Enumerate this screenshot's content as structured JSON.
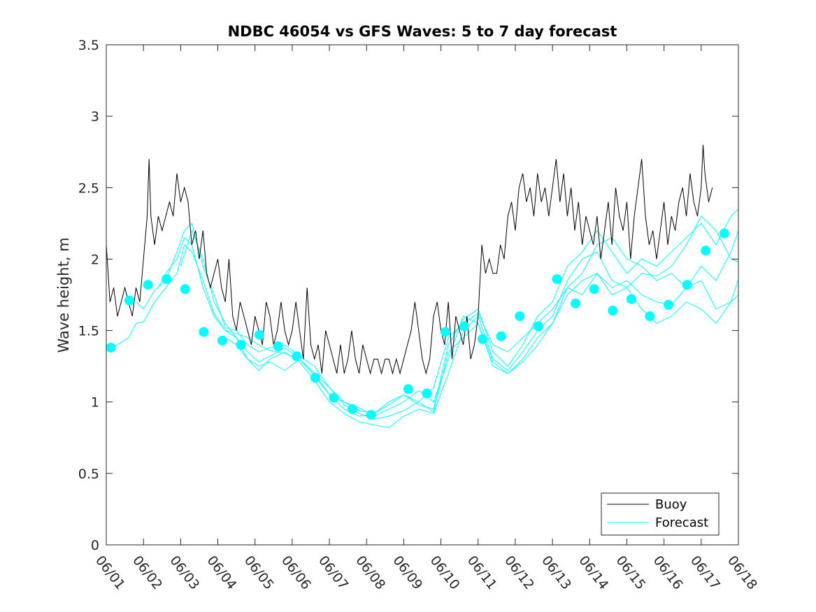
{
  "chart_data": {
    "type": "line",
    "title": "NDBC 46054 vs GFS Waves: 5 to 7 day forecast",
    "xlabel": "",
    "ylabel": "Wave height, m",
    "ylim": [
      0,
      3.5
    ],
    "yticks": [
      "0",
      "0.5",
      "1",
      "1.5",
      "2",
      "2.5",
      "3",
      "3.5"
    ],
    "xlim": [
      1,
      18
    ],
    "xticks": [
      "06/01",
      "06/02",
      "06/03",
      "06/04",
      "06/05",
      "06/06",
      "06/07",
      "06/08",
      "06/09",
      "06/10",
      "06/11",
      "06/12",
      "06/13",
      "06/14",
      "06/15",
      "06/16",
      "06/17",
      "06/18"
    ],
    "grid": false,
    "legend_position": "bottom-right",
    "colors": {
      "buoy": "#000000",
      "forecast": "#00ffff"
    },
    "series": [
      {
        "name": "Buoy",
        "style": "line",
        "x": [
          1.0,
          1.1,
          1.2,
          1.3,
          1.4,
          1.5,
          1.6,
          1.7,
          1.8,
          1.9,
          2.0,
          2.1,
          2.15,
          2.2,
          2.3,
          2.4,
          2.5,
          2.6,
          2.7,
          2.8,
          2.9,
          3.0,
          3.1,
          3.2,
          3.3,
          3.4,
          3.5,
          3.6,
          3.7,
          3.8,
          3.9,
          4.0,
          4.1,
          4.2,
          4.3,
          4.4,
          4.5,
          4.6,
          4.7,
          4.8,
          4.9,
          5.0,
          5.1,
          5.2,
          5.3,
          5.4,
          5.5,
          5.6,
          5.7,
          5.8,
          5.9,
          6.0,
          6.1,
          6.2,
          6.3,
          6.4,
          6.5,
          6.6,
          6.7,
          6.8,
          6.9,
          7.0,
          7.1,
          7.2,
          7.3,
          7.4,
          7.5,
          7.6,
          7.7,
          7.8,
          7.9,
          8.0,
          8.1,
          8.2,
          8.3,
          8.4,
          8.5,
          8.6,
          8.7,
          8.8,
          8.9,
          9.0,
          9.1,
          9.2,
          9.3,
          9.4,
          9.5,
          9.6,
          9.7,
          9.8,
          9.9,
          10.0,
          10.1,
          10.2,
          10.3,
          10.4,
          10.5,
          10.6,
          10.7,
          10.8,
          10.9,
          11.0,
          11.1,
          11.2,
          11.3,
          11.4,
          11.5,
          11.6,
          11.7,
          11.8,
          11.9,
          12.0,
          12.1,
          12.2,
          12.3,
          12.4,
          12.5,
          12.6,
          12.7,
          12.8,
          12.9,
          13.0,
          13.1,
          13.2,
          13.3,
          13.4,
          13.5,
          13.6,
          13.7,
          13.8,
          13.9,
          14.0,
          14.1,
          14.2,
          14.3,
          14.4,
          14.5,
          14.6,
          14.7,
          14.8,
          14.9,
          15.0,
          15.1,
          15.2,
          15.3,
          15.4,
          15.5,
          15.6,
          15.7,
          15.8,
          15.9,
          16.0,
          16.1,
          16.2,
          16.3,
          16.4,
          16.5,
          16.6,
          16.7,
          16.8,
          16.9,
          17.0,
          17.05,
          17.1,
          17.2,
          17.3
        ],
        "y": [
          2.1,
          1.7,
          1.8,
          1.6,
          1.7,
          1.8,
          1.7,
          1.6,
          1.8,
          1.7,
          2.0,
          2.3,
          2.7,
          2.3,
          2.1,
          2.3,
          2.2,
          2.3,
          2.4,
          2.3,
          2.6,
          2.4,
          2.5,
          2.4,
          2.1,
          2.2,
          2.0,
          2.2,
          1.9,
          1.8,
          1.9,
          2.0,
          1.8,
          1.7,
          2.0,
          1.6,
          1.5,
          1.7,
          1.6,
          1.5,
          1.4,
          1.6,
          1.5,
          1.4,
          1.7,
          1.6,
          1.4,
          1.5,
          1.7,
          1.5,
          1.4,
          1.5,
          1.7,
          1.5,
          1.3,
          1.8,
          1.4,
          1.3,
          1.4,
          1.2,
          1.5,
          1.4,
          1.3,
          1.2,
          1.4,
          1.2,
          1.3,
          1.5,
          1.3,
          1.2,
          1.4,
          1.3,
          1.2,
          1.3,
          1.3,
          1.2,
          1.3,
          1.3,
          1.2,
          1.3,
          1.2,
          1.3,
          1.4,
          1.5,
          1.7,
          1.5,
          1.3,
          1.2,
          1.3,
          1.6,
          1.7,
          1.5,
          1.4,
          1.7,
          1.3,
          1.6,
          1.5,
          1.4,
          1.6,
          1.3,
          1.4,
          1.6,
          2.1,
          1.9,
          2.0,
          1.9,
          1.9,
          2.1,
          2.0,
          2.3,
          2.4,
          2.2,
          2.5,
          2.6,
          2.4,
          2.5,
          2.3,
          2.6,
          2.4,
          2.5,
          2.3,
          2.5,
          2.7,
          2.4,
          2.6,
          2.3,
          2.5,
          2.2,
          2.4,
          2.1,
          2.3,
          2.2,
          2.1,
          2.3,
          2.0,
          2.2,
          2.4,
          2.1,
          2.5,
          2.3,
          2.2,
          2.4,
          2.0,
          2.3,
          2.5,
          2.7,
          2.3,
          2.1,
          2.2,
          2.0,
          2.2,
          2.4,
          2.1,
          2.3,
          2.2,
          2.4,
          2.5,
          2.3,
          2.6,
          2.4,
          2.3,
          2.5,
          2.8,
          2.6,
          2.4,
          2.5
        ]
      },
      {
        "name": "Forecast",
        "style": "line",
        "runs": [
          {
            "x": [
              1.0,
              1.3,
              1.6,
              1.8,
              2.0,
              2.3,
              2.6,
              2.9,
              3.1,
              3.3,
              3.6,
              3.9,
              4.2,
              4.5,
              4.8,
              5.1,
              5.4,
              5.8,
              6.2,
              6.6,
              7.0,
              7.4,
              7.8,
              8.2,
              8.6,
              9.0,
              9.4,
              9.8,
              10.2,
              10.6,
              11.0,
              11.4,
              11.8,
              12.2,
              12.6,
              13.0,
              13.4,
              13.8,
              14.2,
              14.6,
              15.0,
              15.4,
              15.8,
              16.2,
              16.6,
              17.0,
              17.4,
              17.8,
              18.0
            ],
            "y": [
              1.38,
              1.4,
              1.45,
              1.55,
              1.56,
              1.7,
              1.8,
              1.9,
              2.1,
              2.05,
              1.85,
              1.62,
              1.5,
              1.48,
              1.45,
              1.4,
              1.36,
              1.34,
              1.3,
              1.2,
              1.05,
              1.0,
              0.94,
              0.92,
              0.98,
              1.05,
              1.0,
              1.1,
              1.45,
              1.55,
              1.62,
              1.4,
              1.35,
              1.45,
              1.55,
              1.65,
              1.8,
              1.75,
              1.9,
              1.8,
              1.85,
              1.75,
              1.7,
              1.68,
              1.8,
              1.85,
              1.65,
              1.7,
              1.86
            ]
          },
          {
            "x": [
              1.8,
              2.0,
              2.3,
              2.6,
              2.9,
              3.1,
              3.3,
              3.6,
              3.9,
              4.2,
              4.5,
              4.8,
              5.1,
              5.4,
              5.8,
              6.2,
              6.6,
              7.0,
              7.4,
              7.8,
              8.2,
              8.6,
              9.0,
              9.4,
              9.8,
              10.2,
              10.6,
              11.0,
              11.4,
              11.8,
              12.2,
              12.6,
              13.0,
              13.4,
              13.8,
              14.2,
              14.6,
              15.0,
              15.4,
              15.8,
              16.2,
              16.6,
              17.0,
              17.4,
              17.8,
              18.0
            ],
            "y": [
              1.7,
              1.65,
              1.78,
              1.85,
              2.05,
              2.2,
              2.25,
              1.95,
              1.75,
              1.52,
              1.5,
              1.4,
              1.35,
              1.38,
              1.4,
              1.32,
              1.25,
              1.1,
              1.0,
              0.96,
              0.9,
              0.95,
              1.0,
              1.08,
              1.0,
              1.3,
              1.6,
              1.55,
              1.28,
              1.2,
              1.3,
              1.45,
              1.55,
              1.8,
              1.9,
              2.1,
              2.15,
              2.0,
              1.95,
              1.85,
              1.9,
              1.8,
              1.95,
              1.85,
              2.05,
              2.2
            ]
          },
          {
            "x": [
              2.4,
              2.6,
              2.9,
              3.1,
              3.3,
              3.6,
              3.9,
              4.2,
              4.5,
              4.8,
              5.1,
              5.4,
              5.8,
              6.2,
              6.6,
              7.0,
              7.4,
              7.8,
              8.2,
              8.6,
              9.0,
              9.4,
              9.8,
              10.2,
              10.6,
              11.0,
              11.4,
              11.8,
              12.2,
              12.6,
              13.0,
              13.4,
              13.8,
              14.2,
              14.6,
              15.0,
              15.4,
              15.8,
              16.2,
              16.6,
              17.0,
              17.4,
              17.8,
              18.0
            ],
            "y": [
              1.8,
              1.9,
              2.0,
              2.15,
              2.1,
              1.8,
              1.6,
              1.5,
              1.45,
              1.35,
              1.28,
              1.32,
              1.38,
              1.3,
              1.18,
              1.05,
              0.95,
              0.9,
              0.92,
              1.0,
              1.05,
              0.98,
              0.95,
              1.4,
              1.58,
              1.65,
              1.35,
              1.25,
              1.4,
              1.6,
              1.7,
              1.95,
              2.05,
              2.2,
              2.05,
              1.9,
              2.0,
              1.95,
              2.05,
              2.15,
              2.25,
              2.1,
              2.3,
              2.35
            ]
          },
          {
            "x": [
              3.0,
              3.3,
              3.6,
              3.9,
              4.2,
              4.5,
              4.8,
              5.1,
              5.4,
              5.8,
              6.2,
              6.6,
              7.0,
              7.4,
              7.8,
              8.2,
              8.6,
              9.0,
              9.4,
              9.8,
              10.2,
              10.6,
              11.0,
              11.4,
              11.8,
              12.2,
              12.6,
              13.0,
              13.4,
              13.8,
              14.2,
              14.6,
              15.0,
              15.4,
              15.8,
              16.2,
              16.6,
              17.0,
              17.4,
              17.8,
              18.0
            ],
            "y": [
              1.95,
              2.2,
              2.0,
              1.7,
              1.55,
              1.45,
              1.3,
              1.22,
              1.3,
              1.35,
              1.28,
              1.15,
              1.0,
              0.92,
              0.86,
              0.84,
              0.82,
              0.9,
              0.95,
              0.92,
              1.2,
              1.5,
              1.6,
              1.3,
              1.22,
              1.35,
              1.5,
              1.6,
              1.85,
              2.0,
              2.05,
              1.85,
              1.8,
              1.9,
              1.88,
              1.95,
              2.1,
              2.3,
              2.2,
              2.0,
              1.98
            ]
          },
          {
            "x": [
              4.2,
              4.5,
              4.8,
              5.1,
              5.4,
              5.8,
              6.2,
              6.6,
              7.0,
              7.4,
              7.8,
              8.2,
              8.6,
              9.0,
              9.4,
              9.8,
              10.2,
              10.6,
              11.0,
              11.4,
              11.8,
              12.2,
              12.6,
              13.0,
              13.4,
              13.8,
              14.2,
              14.6,
              15.0,
              15.4,
              15.8,
              16.2,
              16.6,
              17.0,
              17.4,
              17.8,
              18.0
            ],
            "y": [
              1.45,
              1.4,
              1.3,
              1.25,
              1.28,
              1.22,
              1.3,
              1.2,
              1.1,
              0.98,
              0.92,
              0.88,
              0.9,
              0.94,
              1.0,
              0.93,
              1.35,
              1.45,
              1.55,
              1.25,
              1.2,
              1.28,
              1.4,
              1.55,
              1.75,
              1.85,
              1.9,
              1.75,
              1.8,
              1.65,
              1.55,
              1.6,
              1.7,
              1.65,
              1.55,
              1.7,
              1.75
            ]
          }
        ],
        "points": {
          "x": [
            1.12,
            1.62,
            2.12,
            2.62,
            3.12,
            3.62,
            4.12,
            4.62,
            5.12,
            5.62,
            6.12,
            6.62,
            7.12,
            7.62,
            8.12,
            8.62,
            9.12,
            9.62,
            10.12,
            10.62,
            11.12,
            11.62,
            12.12,
            12.62,
            13.12,
            13.62,
            14.12,
            14.62,
            15.12,
            15.62,
            16.12,
            16.62,
            17.12,
            17.62
          ],
          "y": [
            1.38,
            1.71,
            1.82,
            1.86,
            1.79,
            1.49,
            1.43,
            1.4,
            1.47,
            1.39,
            1.32,
            1.17,
            1.03,
            0.95,
            0.91,
            null,
            1.09,
            1.06,
            1.49,
            1.53,
            1.44,
            1.46,
            1.6,
            1.53,
            1.86,
            1.69,
            1.79,
            1.64,
            1.72,
            1.6,
            1.68,
            1.82,
            2.06,
            2.18
          ]
        }
      }
    ],
    "legend": [
      "Buoy",
      "Forecast"
    ]
  }
}
